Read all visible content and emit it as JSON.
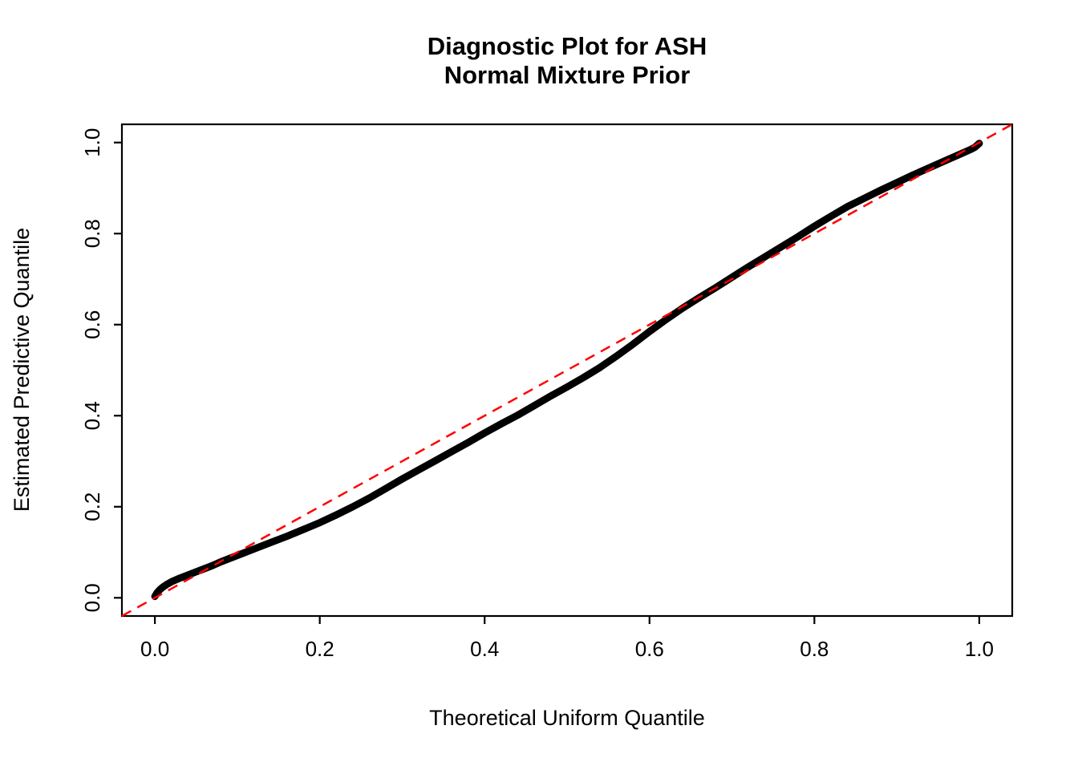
{
  "chart_data": {
    "type": "line",
    "title_lines": [
      "Diagnostic Plot for ASH",
      "Normal Mixture Prior"
    ],
    "xlabel": "Theoretical Uniform Quantile",
    "ylabel": "Estimated Predictive Quantile",
    "axis_range": [
      -0.04,
      1.04
    ],
    "xticks": [
      0.0,
      0.2,
      0.4,
      0.6,
      0.8,
      1.0
    ],
    "yticks": [
      0.0,
      0.2,
      0.4,
      0.6,
      0.8,
      1.0
    ],
    "xtick_labels": [
      "0.0",
      "0.2",
      "0.4",
      "0.6",
      "0.8",
      "1.0"
    ],
    "ytick_labels": [
      "0.0",
      "0.2",
      "0.4",
      "0.6",
      "0.8",
      "1.0"
    ],
    "grid": false,
    "legend": "none",
    "reference_line": {
      "style": "dashed",
      "color": "#ff0000",
      "from": [
        -0.04,
        -0.04
      ],
      "to": [
        1.04,
        1.04
      ]
    },
    "series": [
      {
        "name": "estimated-predictive-quantile-vs-theoretical-uniform-quantile",
        "color": "#000000",
        "points": [
          [
            0.0,
            0.003
          ],
          [
            0.003,
            0.012
          ],
          [
            0.006,
            0.018
          ],
          [
            0.01,
            0.024
          ],
          [
            0.015,
            0.03
          ],
          [
            0.02,
            0.035
          ],
          [
            0.03,
            0.043
          ],
          [
            0.04,
            0.05
          ],
          [
            0.05,
            0.057
          ],
          [
            0.06,
            0.064
          ],
          [
            0.07,
            0.071
          ],
          [
            0.08,
            0.079
          ],
          [
            0.09,
            0.086
          ],
          [
            0.1,
            0.093
          ],
          [
            0.12,
            0.107
          ],
          [
            0.14,
            0.121
          ],
          [
            0.16,
            0.135
          ],
          [
            0.18,
            0.15
          ],
          [
            0.2,
            0.165
          ],
          [
            0.22,
            0.182
          ],
          [
            0.24,
            0.2
          ],
          [
            0.26,
            0.219
          ],
          [
            0.28,
            0.24
          ],
          [
            0.3,
            0.261
          ],
          [
            0.32,
            0.281
          ],
          [
            0.34,
            0.301
          ],
          [
            0.36,
            0.321
          ],
          [
            0.38,
            0.341
          ],
          [
            0.4,
            0.362
          ],
          [
            0.42,
            0.382
          ],
          [
            0.44,
            0.401
          ],
          [
            0.46,
            0.422
          ],
          [
            0.48,
            0.443
          ],
          [
            0.5,
            0.463
          ],
          [
            0.52,
            0.484
          ],
          [
            0.54,
            0.506
          ],
          [
            0.56,
            0.531
          ],
          [
            0.58,
            0.557
          ],
          [
            0.6,
            0.585
          ],
          [
            0.62,
            0.611
          ],
          [
            0.64,
            0.636
          ],
          [
            0.66,
            0.659
          ],
          [
            0.68,
            0.681
          ],
          [
            0.7,
            0.704
          ],
          [
            0.72,
            0.727
          ],
          [
            0.74,
            0.749
          ],
          [
            0.76,
            0.771
          ],
          [
            0.78,
            0.793
          ],
          [
            0.8,
            0.816
          ],
          [
            0.82,
            0.838
          ],
          [
            0.84,
            0.859
          ],
          [
            0.86,
            0.877
          ],
          [
            0.88,
            0.895
          ],
          [
            0.9,
            0.912
          ],
          [
            0.92,
            0.929
          ],
          [
            0.94,
            0.945
          ],
          [
            0.96,
            0.961
          ],
          [
            0.98,
            0.977
          ],
          [
            0.99,
            0.985
          ],
          [
            0.995,
            0.99
          ],
          [
            1.0,
            0.998
          ]
        ]
      }
    ]
  }
}
